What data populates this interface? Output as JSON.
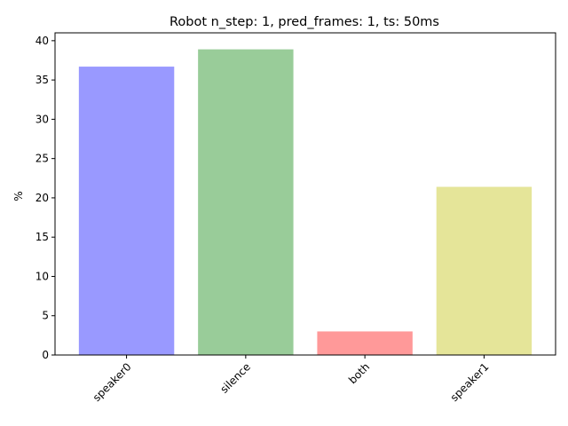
{
  "chart_data": {
    "type": "bar",
    "title": "Robot n_step: 1, pred_frames: 1, ts: 50ms",
    "xlabel": "",
    "ylabel": "%",
    "categories": [
      "speaker0",
      "silence",
      "both",
      "speaker1"
    ],
    "values": [
      36.7,
      38.9,
      3.0,
      21.4
    ],
    "colors": [
      "#9999ff",
      "#99cc99",
      "#ff9999",
      "#e5e599"
    ],
    "ylim": [
      0,
      41
    ],
    "yticks": [
      0,
      5,
      10,
      15,
      20,
      25,
      30,
      35,
      40
    ],
    "grid": false,
    "legend": "none"
  }
}
